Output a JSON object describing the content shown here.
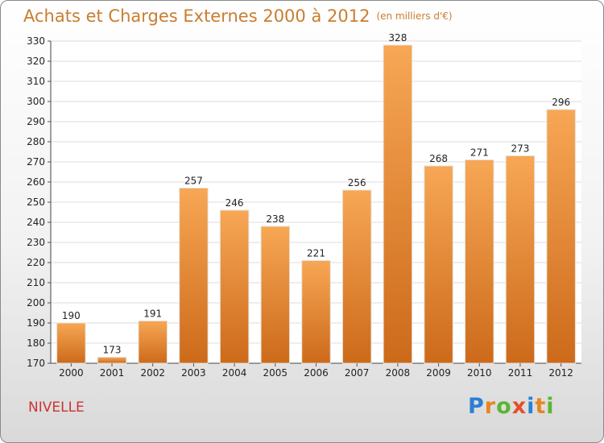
{
  "chart_data": {
    "type": "bar",
    "title": "Achats et Charges Externes 2000 à 2012",
    "subtitle": "(en milliers d'€)",
    "categories": [
      "2000",
      "2001",
      "2002",
      "2003",
      "2004",
      "2005",
      "2006",
      "2007",
      "2008",
      "2009",
      "2010",
      "2011",
      "2012"
    ],
    "values": [
      190,
      173,
      191,
      257,
      246,
      238,
      221,
      256,
      328,
      268,
      271,
      273,
      296
    ],
    "ylim": [
      170,
      330
    ],
    "yticks": [
      170,
      180,
      190,
      200,
      210,
      220,
      230,
      240,
      250,
      260,
      270,
      280,
      290,
      300,
      310,
      320,
      330
    ],
    "grid": true,
    "bar_color_top": "#f7a755",
    "bar_color_bottom": "#cc6a1a"
  },
  "place_name": "NIVELLE",
  "logo": {
    "letters": [
      "P",
      "r",
      "o",
      "x",
      "i",
      "t",
      "i"
    ],
    "colors": [
      "#2b7fd4",
      "#e8861e",
      "#5bb531",
      "#e34f2a",
      "#2b7fd4",
      "#e8861e",
      "#5bb531"
    ]
  }
}
